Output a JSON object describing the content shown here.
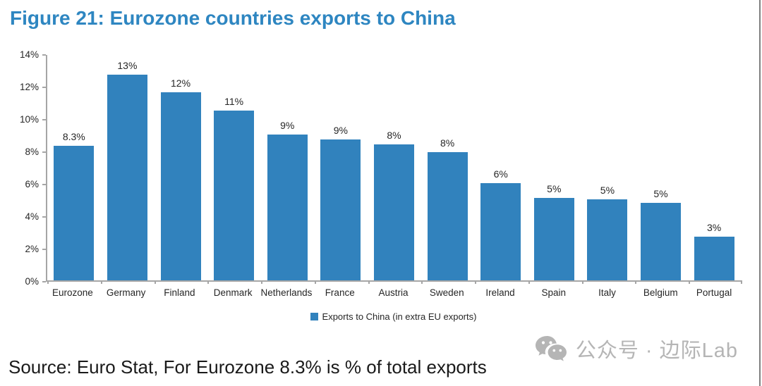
{
  "page": {
    "title": "Figure 21: Eurozone countries exports to China",
    "source_note": "Source: Euro Stat, For Eurozone 8.3% is % of total exports",
    "watermark_text": "公众号 · 边际Lab",
    "colors": {
      "title_blue": "#2e86c1",
      "bar_blue": "#3182bd",
      "axis_gray": "#a6a6a6",
      "watermark_gray": "#b5b5b5",
      "page_border_gray": "#808080"
    }
  },
  "chart_data": {
    "type": "bar",
    "title": "",
    "xlabel": "",
    "ylabel": "",
    "categories": [
      "Eurozone",
      "Germany",
      "Finland",
      "Denmark",
      "Netherlands",
      "France",
      "Austria",
      "Sweden",
      "Ireland",
      "Spain",
      "Italy",
      "Belgium",
      "Portugal"
    ],
    "values": [
      8.3,
      13,
      12,
      11,
      9,
      9,
      8,
      8,
      6,
      5,
      5,
      5,
      3
    ],
    "value_labels": [
      "8.3%",
      "13%",
      "12%",
      "11%",
      "9%",
      "9%",
      "8%",
      "8%",
      "6%",
      "5%",
      "5%",
      "5%",
      "3%"
    ],
    "bar_heights_pct": [
      8.3,
      12.7,
      11.6,
      10.5,
      9.0,
      8.7,
      8.4,
      7.9,
      6.0,
      5.1,
      5.0,
      4.8,
      2.7
    ],
    "ylim": [
      0,
      14
    ],
    "ytick_step": 2,
    "ytick_labels": [
      "0%",
      "2%",
      "4%",
      "6%",
      "8%",
      "10%",
      "12%",
      "14%"
    ],
    "grid": false,
    "bar_color": "#3182bd",
    "legend": {
      "position": "bottom-center",
      "entries": [
        {
          "label": "Exports to China (in extra EU exports)",
          "color": "#3182bd"
        }
      ]
    }
  }
}
